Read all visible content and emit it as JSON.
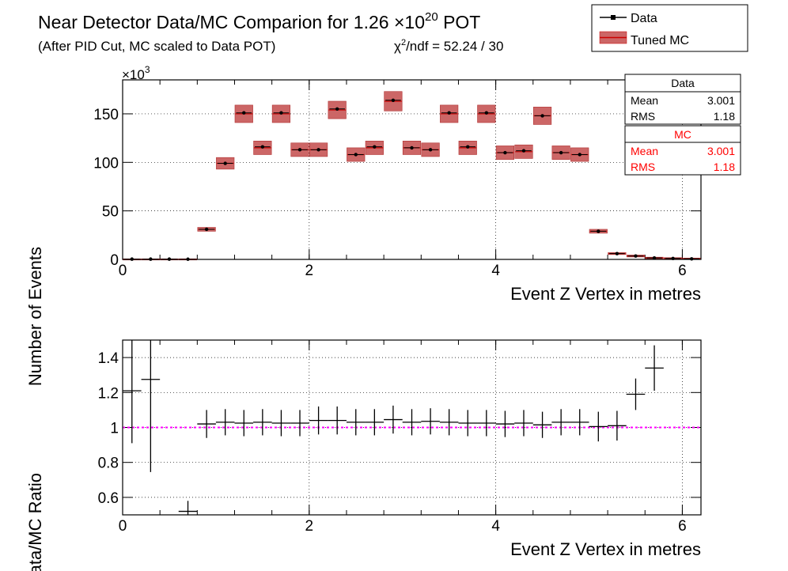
{
  "title": {
    "text": "Near Detector Data/MC Comparion for 1.26 ",
    "times": "×",
    "base": "10",
    "exponent": "20",
    "suffix": " POT"
  },
  "subtitle": "(After PID Cut, MC scaled to Data POT)",
  "chi2": {
    "chi": "χ",
    "sup": "2",
    "rest": "/ndf = 52.24 / 30"
  },
  "legend": {
    "data_label": "Data",
    "mc_label": "Tuned MC"
  },
  "stats": {
    "data": {
      "title": "Data",
      "mean_label": "Mean",
      "mean_value": "3.001",
      "rms_label": "RMS",
      "rms_value": "1.18"
    },
    "mc": {
      "title": "MC",
      "mean_label": "Mean",
      "mean_value": "3.001",
      "rms_label": "RMS",
      "rms_value": "1.18"
    }
  },
  "colors": {
    "data": "#000000",
    "mc_fill": "#cc6666",
    "mc_line": "#cc0000",
    "stats_mc_text": "#ff0000",
    "ratio_line": "#ff00ff"
  },
  "chart_data": [
    {
      "type": "bar",
      "xlabel": "Event Z Vertex in metres",
      "ylabel": "Number of Events",
      "y_multiplier_label": "×10",
      "y_multiplier_exponent": "3",
      "xlim": [
        0,
        6.2
      ],
      "ylim": [
        0,
        185
      ],
      "x_ticks": [
        0,
        2,
        4,
        6
      ],
      "y_ticks": [
        0,
        50,
        100,
        150
      ],
      "x": [
        0.1,
        0.3,
        0.5,
        0.7,
        0.9,
        1.1,
        1.3,
        1.5,
        1.7,
        1.9,
        2.1,
        2.3,
        2.5,
        2.7,
        2.9,
        3.1,
        3.3,
        3.5,
        3.7,
        3.9,
        4.1,
        4.3,
        4.5,
        4.7,
        4.9,
        5.1,
        5.3,
        5.5,
        5.7,
        5.9,
        6.1
      ],
      "series": [
        {
          "name": "Data",
          "values": [
            0.3,
            0.3,
            0.3,
            0.2,
            31,
            99,
            151,
            116,
            151,
            113,
            113,
            155,
            108,
            116,
            164,
            115,
            113,
            151,
            116,
            151,
            110,
            112,
            148,
            110,
            108,
            29,
            6,
            3.5,
            1.5,
            1,
            0.6
          ]
        },
        {
          "name": "Tuned MC",
          "values": [
            0.3,
            0.3,
            0.3,
            0.3,
            31,
            99,
            150,
            115,
            150,
            113,
            113,
            154,
            108,
            115,
            163,
            115,
            113,
            150,
            115,
            150,
            110,
            111,
            148,
            110,
            108,
            29,
            6,
            3.5,
            1.5,
            1,
            0.6
          ]
        }
      ],
      "mc_band_halfwidth": [
        0.3,
        0.3,
        0.3,
        0.3,
        2,
        6,
        9,
        7,
        9,
        7,
        7,
        9,
        7,
        7,
        10,
        7,
        7,
        9,
        7,
        9,
        7,
        7,
        9,
        7,
        7,
        2,
        1,
        1,
        0.8,
        0.8,
        0.8
      ]
    },
    {
      "type": "scatter",
      "xlabel": "Event Z Vertex in metres",
      "ylabel": "Data/MC Ratio",
      "xlim": [
        0,
        6.2
      ],
      "ylim": [
        0.5,
        1.5
      ],
      "x_ticks": [
        0,
        2,
        4,
        6
      ],
      "y_ticks": [
        0.6,
        0.8,
        1,
        1.2,
        1.4
      ],
      "reference_line": 1,
      "x": [
        0.1,
        0.3,
        0.5,
        0.7,
        0.9,
        1.1,
        1.3,
        1.5,
        1.7,
        1.9,
        2.1,
        2.3,
        2.5,
        2.7,
        2.9,
        3.1,
        3.3,
        3.5,
        3.7,
        3.9,
        4.1,
        4.3,
        4.5,
        4.7,
        4.9,
        5.1,
        5.3,
        5.5,
        5.7
      ],
      "values": [
        1.21,
        1.275,
        null,
        0.52,
        1.02,
        1.03,
        1.025,
        1.03,
        1.025,
        1.025,
        1.04,
        1.04,
        1.03,
        1.03,
        1.045,
        1.03,
        1.035,
        1.03,
        1.025,
        1.025,
        1.02,
        1.025,
        1.015,
        1.03,
        1.03,
        1.005,
        1.01,
        1.19,
        1.34
      ],
      "errors": [
        0.3,
        0.53,
        null,
        0.06,
        0.08,
        0.075,
        0.075,
        0.075,
        0.075,
        0.075,
        0.08,
        0.08,
        0.075,
        0.075,
        0.08,
        0.075,
        0.075,
        0.075,
        0.075,
        0.075,
        0.075,
        0.075,
        0.075,
        0.075,
        0.075,
        0.085,
        0.085,
        0.09,
        0.13
      ]
    }
  ]
}
